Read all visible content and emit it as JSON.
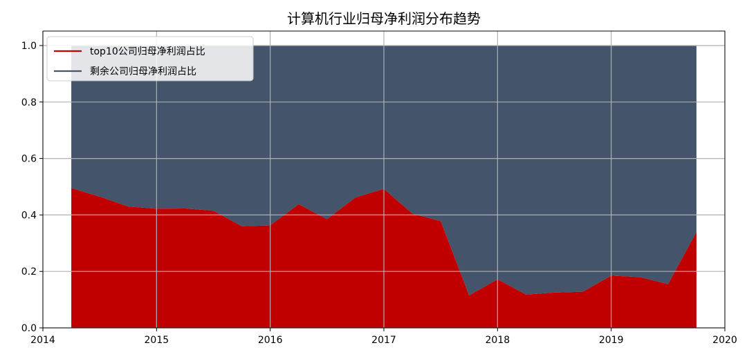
{
  "chart_data": {
    "type": "area",
    "stacked": true,
    "title": "计算机行业归母净利润分布趋势",
    "xlabel": "",
    "ylabel": "",
    "xlim": [
      2014.0,
      2020.0
    ],
    "ylim": [
      0.0,
      1.0
    ],
    "grid": true,
    "legend_position": "top-left",
    "x_ticks": [
      "2014",
      "2015",
      "2016",
      "2017",
      "2018",
      "2019",
      "2020"
    ],
    "y_ticks": [
      "0.0",
      "0.2",
      "0.4",
      "0.6",
      "0.8",
      "1.0"
    ],
    "x": [
      2014.25,
      2014.5,
      2014.75,
      2015.0,
      2015.25,
      2015.5,
      2015.75,
      2016.0,
      2016.25,
      2016.5,
      2016.75,
      2017.0,
      2017.25,
      2017.5,
      2017.75,
      2018.0,
      2018.25,
      2018.5,
      2018.75,
      2019.0,
      2019.25,
      2019.5,
      2019.75
    ],
    "series": [
      {
        "name": "top10公司归母净利润占比",
        "color": "#c00000",
        "values": [
          0.495,
          0.465,
          0.43,
          0.422,
          0.423,
          0.415,
          0.36,
          0.363,
          0.438,
          0.385,
          0.462,
          0.492,
          0.405,
          0.378,
          0.115,
          0.172,
          0.118,
          0.125,
          0.128,
          0.185,
          0.18,
          0.155,
          0.34
        ]
      },
      {
        "name": "剩余公司归母净利润占比",
        "color": "#44546a",
        "values": [
          0.505,
          0.535,
          0.57,
          0.578,
          0.577,
          0.585,
          0.64,
          0.637,
          0.562,
          0.615,
          0.538,
          0.508,
          0.595,
          0.622,
          0.885,
          0.828,
          0.882,
          0.875,
          0.872,
          0.815,
          0.82,
          0.845,
          0.66
        ]
      }
    ]
  }
}
